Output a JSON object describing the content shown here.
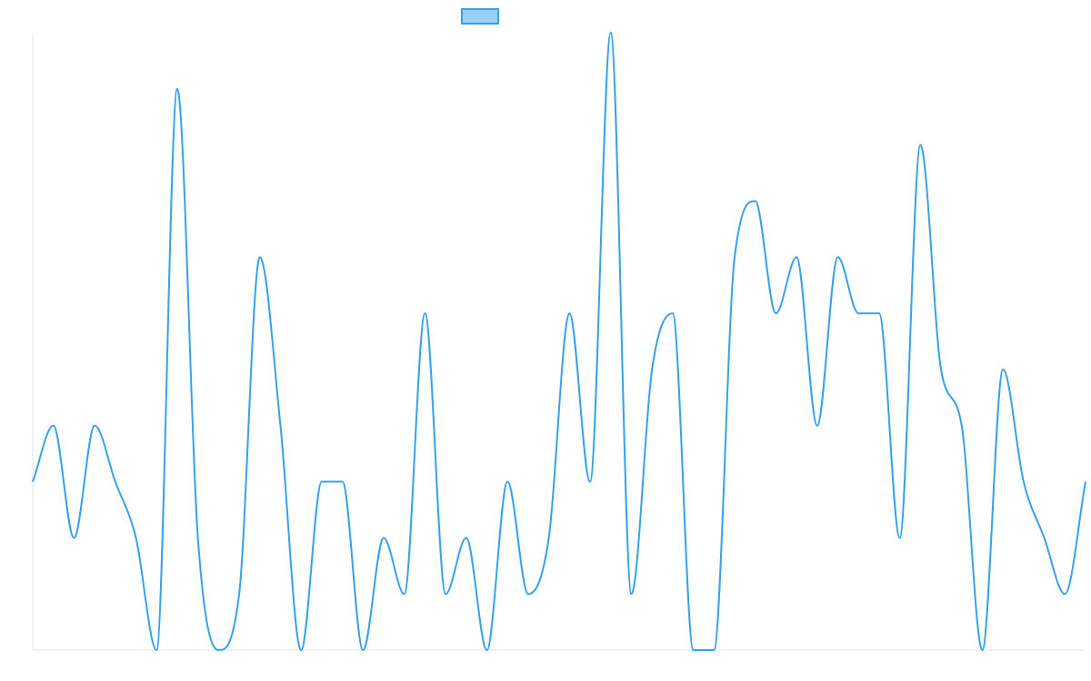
{
  "chart_data": {
    "type": "line",
    "curve": "smooth",
    "title": "",
    "xlabel": "",
    "ylabel": "",
    "grid": false,
    "legend": {
      "placement": "top-center"
    },
    "series": [
      {
        "name": "",
        "color": "#36a2eb",
        "fill": "#9ad0f5",
        "values": [
          3,
          4,
          2,
          4,
          3,
          2,
          0,
          10,
          2,
          0,
          1,
          7,
          4,
          0,
          3,
          3,
          0,
          2,
          1,
          6,
          1,
          2,
          0,
          3,
          1,
          2,
          6,
          3,
          11,
          1,
          5,
          6,
          0,
          0,
          7,
          8,
          6,
          7,
          4,
          7,
          6,
          6,
          2,
          9,
          5,
          4,
          0,
          5,
          3,
          2,
          1,
          3
        ]
      }
    ],
    "ylim": [
      0,
      11
    ]
  }
}
